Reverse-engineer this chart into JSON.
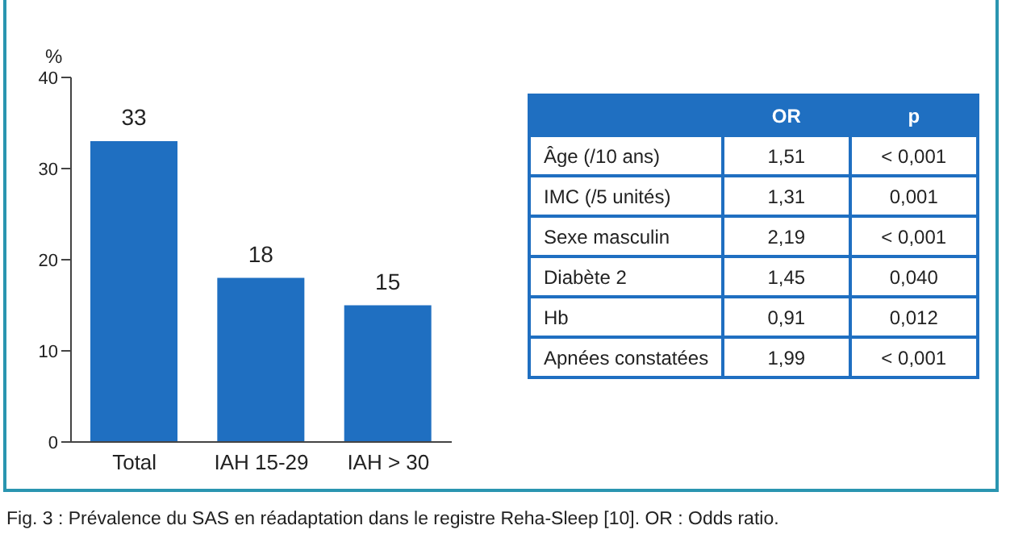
{
  "chart_data": [
    {
      "type": "bar",
      "ylabel": "%",
      "categories": [
        "Total",
        "IAH 15-29",
        "IAH > 30"
      ],
      "values": [
        33,
        18,
        15
      ],
      "color": "#1f6fc1",
      "ylim": [
        0,
        40
      ],
      "yticks": [
        0,
        10,
        20,
        30,
        40
      ],
      "grid": false,
      "data_labels": true,
      "annotations": [
        "Fig. 3 : Prévalence du SAS en réadaptation dans le registre Reha-Sleep [10]. OR : Odds ratio."
      ]
    },
    {
      "type": "other",
      "categories": [
        "Âge (/10 ans)",
        "IMC (/5 unités)",
        "Sexe masculin",
        "Diabète 2",
        "Hb",
        "Apnées constatées"
      ],
      "series": [
        {
          "name": "OR",
          "values": [
            null,
            null,
            null,
            null,
            null,
            null
          ],
          "value_labels": [
            "1,51",
            "1,31",
            "2,19",
            "1,45",
            "0,91",
            "1,99"
          ]
        },
        {
          "name": "p",
          "values": [
            null,
            null,
            null,
            null,
            null,
            null
          ],
          "value_labels": [
            "< 0,001",
            "0,001",
            "< 0,001",
            "0,040",
            "0,012",
            "< 0,001"
          ]
        }
      ]
    }
  ]
}
